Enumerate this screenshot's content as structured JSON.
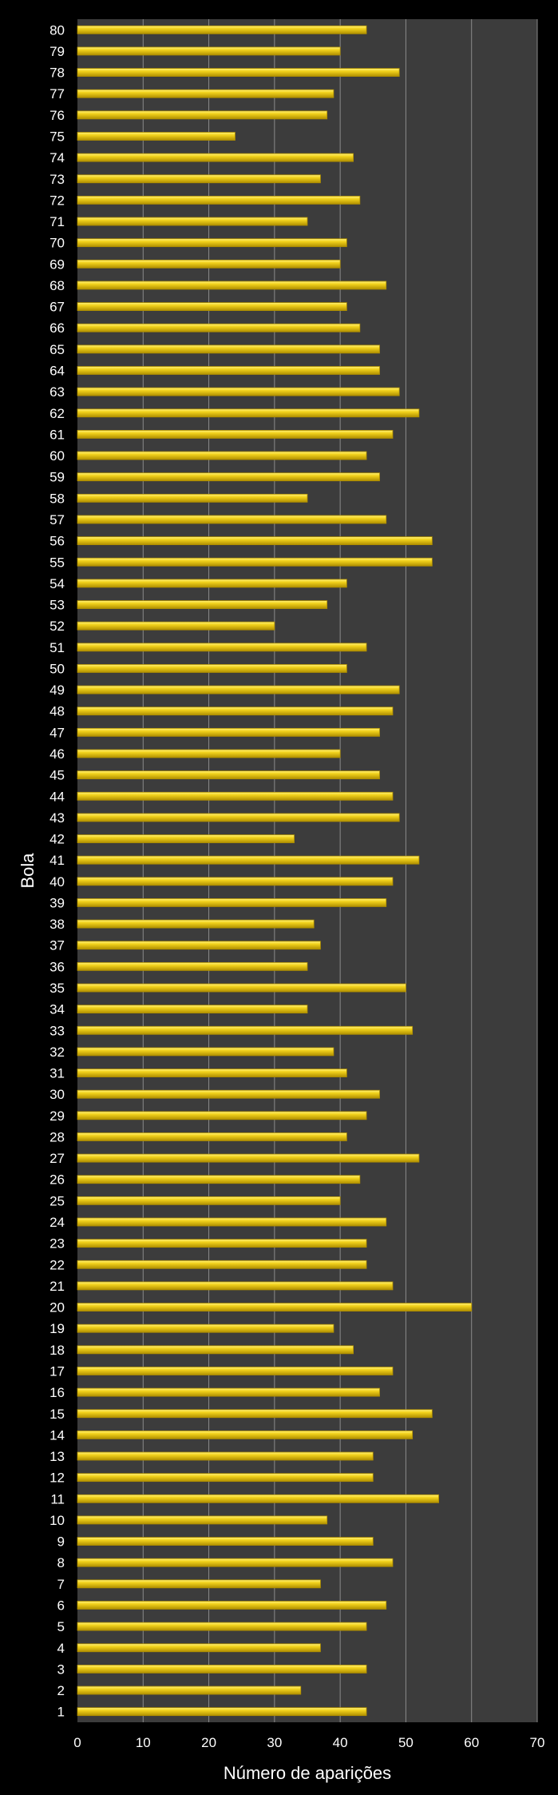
{
  "chart_data": {
    "type": "bar",
    "orientation": "horizontal",
    "xlabel": "Número de aparições",
    "ylabel": "Bola",
    "xlim": [
      0,
      70
    ],
    "x_ticks": [
      0,
      10,
      20,
      30,
      40,
      50,
      60,
      70
    ],
    "grid": "vertical",
    "legend": "none",
    "categories": [
      "1",
      "2",
      "3",
      "4",
      "5",
      "6",
      "7",
      "8",
      "9",
      "10",
      "11",
      "12",
      "13",
      "14",
      "15",
      "16",
      "17",
      "18",
      "19",
      "20",
      "21",
      "22",
      "23",
      "24",
      "25",
      "26",
      "27",
      "28",
      "29",
      "30",
      "31",
      "32",
      "33",
      "34",
      "35",
      "36",
      "37",
      "38",
      "39",
      "40",
      "41",
      "42",
      "43",
      "44",
      "45",
      "46",
      "47",
      "48",
      "49",
      "50",
      "51",
      "52",
      "53",
      "54",
      "55",
      "56",
      "57",
      "58",
      "59",
      "60",
      "61",
      "62",
      "63",
      "64",
      "65",
      "66",
      "67",
      "68",
      "69",
      "70",
      "71",
      "72",
      "73",
      "74",
      "75",
      "76",
      "77",
      "78",
      "79",
      "80"
    ],
    "values": [
      44,
      34,
      44,
      37,
      44,
      47,
      37,
      48,
      45,
      38,
      55,
      45,
      45,
      51,
      54,
      46,
      48,
      42,
      39,
      60,
      48,
      44,
      44,
      47,
      40,
      43,
      52,
      41,
      44,
      46,
      41,
      39,
      51,
      35,
      50,
      35,
      37,
      36,
      47,
      48,
      52,
      33,
      49,
      48,
      46,
      40,
      46,
      48,
      49,
      41,
      44,
      30,
      38,
      41,
      54,
      54,
      47,
      35,
      46,
      44,
      48,
      52,
      49,
      46,
      46,
      43,
      41,
      47,
      40,
      41,
      35,
      43,
      37,
      42,
      24,
      38,
      39,
      49,
      40,
      44
    ],
    "colors": {
      "background": "#000000",
      "plot_area": "#3c3c3c",
      "gridline": "#8a8a8a",
      "bar_fill": "#f2d21c",
      "bar_highlight": "#fff27a",
      "bar_shadow": "#b08f00",
      "text": "#ffffff"
    }
  }
}
